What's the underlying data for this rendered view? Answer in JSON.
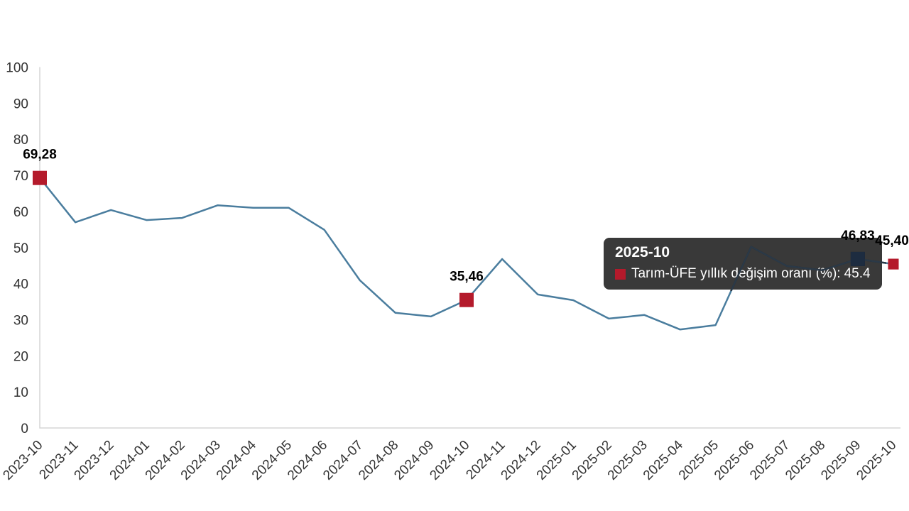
{
  "chart_data": {
    "type": "line",
    "title": "",
    "xlabel": "",
    "ylabel": "",
    "ylim": [
      0,
      100
    ],
    "ytick_step": 10,
    "grid": false,
    "legend": "none",
    "x": [
      "2023-10",
      "2023-11",
      "2023-12",
      "2024-01",
      "2024-02",
      "2024-03",
      "2024-04",
      "2024-05",
      "2024-06",
      "2024-07",
      "2024-08",
      "2024-09",
      "2024-10",
      "2024-11",
      "2024-12",
      "2025-01",
      "2025-02",
      "2025-03",
      "2025-04",
      "2025-05",
      "2025-06",
      "2025-07",
      "2025-08",
      "2025-09",
      "2025-10"
    ],
    "series": [
      {
        "name": "Tarım-ÜFE yıllık değişim oranı (%)",
        "color": "#4a7d9e",
        "values": [
          69.28,
          57.0,
          60.4,
          57.6,
          58.2,
          61.7,
          61.0,
          61.0,
          54.9,
          40.9,
          31.9,
          30.9,
          35.46,
          46.8,
          37.0,
          35.4,
          30.3,
          31.3,
          27.3,
          28.5,
          50.2,
          44.9,
          43.7,
          46.83,
          45.4
        ]
      }
    ],
    "point_labels": [
      {
        "index": 0,
        "text": "69,28"
      },
      {
        "index": 12,
        "text": "35,46"
      },
      {
        "index": 23,
        "text": "46,83"
      },
      {
        "index": 24,
        "text": "45,40"
      }
    ],
    "markers": [
      {
        "index": 0,
        "color": "#b41a2b",
        "size": 20
      },
      {
        "index": 12,
        "color": "#b41a2b",
        "size": 20
      },
      {
        "index": 23,
        "color": "#1d2c40",
        "size": 20
      },
      {
        "index": 24,
        "color": "#b41a2b",
        "size": 15
      }
    ]
  },
  "tooltip": {
    "title": "2025-10",
    "series_label": "Tarım-ÜFE yıllık değişim oranı (%)",
    "separator": ":",
    "value": "45.4",
    "swatch_color": "#b41a2b"
  },
  "colors": {
    "axis_line": "#d6d6d6",
    "tick_text": "#333333",
    "line": "#4a7d9e",
    "tail_line": "#2b3947",
    "label_text": "#000000"
  }
}
